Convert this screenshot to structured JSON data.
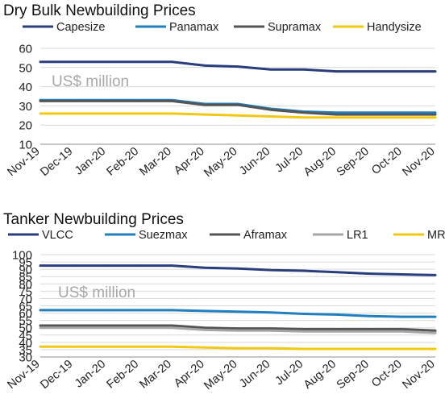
{
  "chart_data": [
    {
      "type": "line",
      "title": "Dry Bulk Newbuilding Prices",
      "unit_label": "US$ million",
      "x": [
        "Nov-19",
        "Dec-19",
        "Jan-20",
        "Feb-20",
        "Mar-20",
        "Apr-20",
        "May-20",
        "Jun-20",
        "Jul-20",
        "Aug-20",
        "Sep-20",
        "Oct-20",
        "Nov-20"
      ],
      "ylim": [
        10,
        60
      ],
      "yticks": [
        10,
        20,
        30,
        40,
        50,
        60
      ],
      "grid": "horizontal",
      "legend_position": "top",
      "series": [
        {
          "name": "Capesize",
          "color": "#2a3d7c",
          "values": [
            53,
            53,
            53,
            53,
            53,
            51,
            50.5,
            49,
            49,
            48,
            48,
            48,
            48
          ]
        },
        {
          "name": "Panamax",
          "color": "#1f7fbf",
          "values": [
            33,
            33,
            33,
            33,
            33,
            31,
            31,
            28.5,
            27,
            26.5,
            26.5,
            26.5,
            26.5
          ]
        },
        {
          "name": "Supramax",
          "color": "#555555",
          "values": [
            32.5,
            32.5,
            32.5,
            32.5,
            32.5,
            30.5,
            30.5,
            28,
            26.5,
            25.5,
            25.5,
            25.5,
            25.5
          ]
        },
        {
          "name": "Handysize",
          "color": "#f2c811",
          "values": [
            26,
            26,
            26,
            26,
            26,
            25.5,
            25,
            24.5,
            24,
            24,
            24,
            24,
            24
          ]
        }
      ]
    },
    {
      "type": "line",
      "title": "Tanker Newbuilding Prices",
      "unit_label": "US$ million",
      "x": [
        "Nov-19",
        "Dec-19",
        "Jan-20",
        "Feb-20",
        "Mar-20",
        "Apr-20",
        "May-20",
        "Jun-20",
        "Jul-20",
        "Aug-20",
        "Sep-20",
        "Oct-20",
        "Nov-20"
      ],
      "ylim": [
        30,
        100
      ],
      "yticks": [
        30,
        35,
        40,
        45,
        50,
        55,
        60,
        65,
        70,
        75,
        80,
        85,
        90,
        95,
        100
      ],
      "grid": "horizontal",
      "legend_position": "top",
      "series": [
        {
          "name": "VLCC",
          "color": "#2a3d7c",
          "values": [
            92.5,
            92.5,
            92.5,
            92.5,
            92.5,
            91,
            90.5,
            89.5,
            89,
            88,
            87,
            86.5,
            86
          ]
        },
        {
          "name": "Suezmax",
          "color": "#1f7fbf",
          "values": [
            62,
            62,
            62,
            62,
            62,
            61.5,
            61,
            60.5,
            59.5,
            59,
            58,
            57.5,
            57.5
          ]
        },
        {
          "name": "Aframax",
          "color": "#555555",
          "values": [
            51.5,
            51.5,
            51.5,
            51.5,
            51.5,
            50,
            49.5,
            49.5,
            49,
            49,
            49,
            49,
            48
          ]
        },
        {
          "name": "LR1",
          "color": "#a6a6a6",
          "values": [
            50,
            50,
            50,
            50,
            50,
            48.5,
            48,
            48,
            47.5,
            47.5,
            47.5,
            47.5,
            46.5
          ]
        },
        {
          "name": "MR",
          "color": "#f2c811",
          "values": [
            37,
            37,
            37,
            37,
            37,
            36.5,
            36,
            36,
            35.5,
            35.5,
            35.5,
            35.5,
            35.5
          ]
        }
      ]
    }
  ]
}
